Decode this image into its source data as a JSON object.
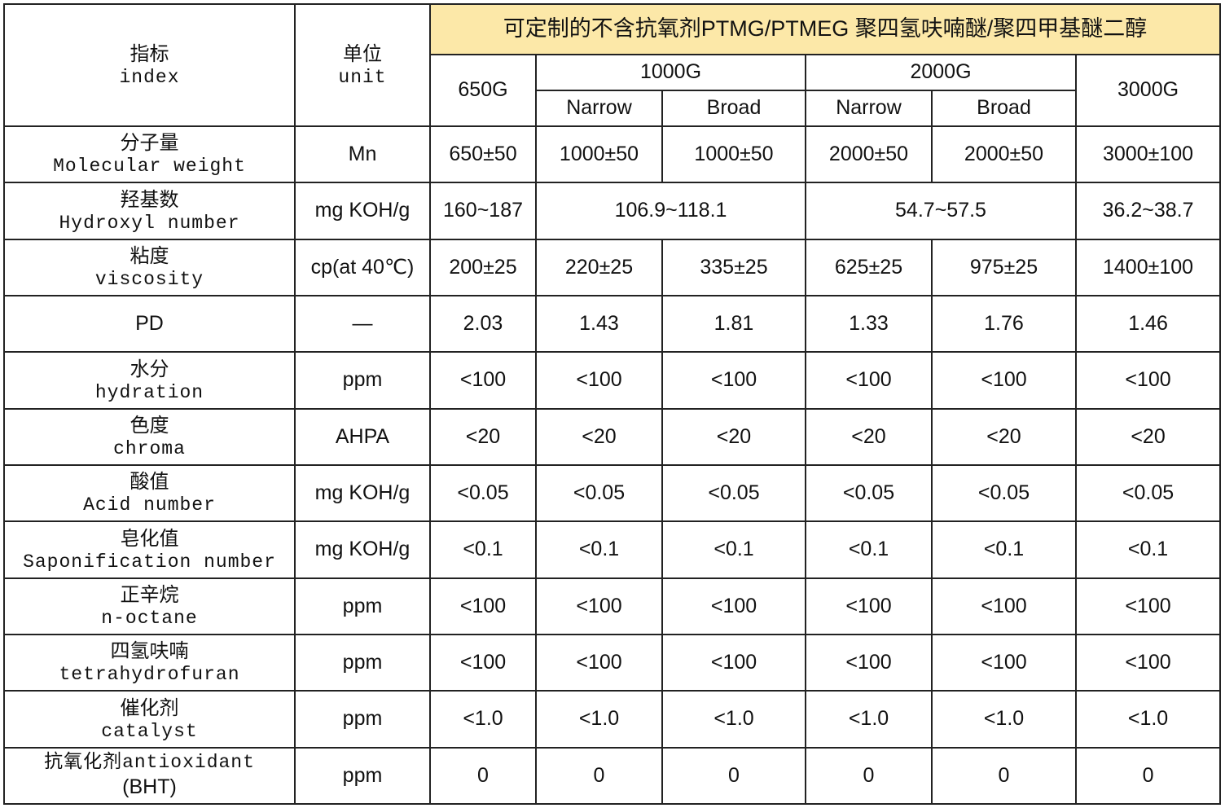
{
  "table": {
    "title": "可定制的不含抗氧剂PTMG/PTMEG 聚四氢呋喃醚/聚四甲基醚二醇",
    "header": {
      "index": [
        "指标",
        "index"
      ],
      "unit": [
        "单位",
        "unit"
      ],
      "grades": [
        "650G",
        "1000G",
        "2000G",
        "3000G"
      ],
      "subheaders": [
        "Narrow",
        "Broad",
        "Narrow",
        "Broad"
      ]
    },
    "rows": [
      {
        "label": [
          "分子量",
          "Molecular weight"
        ],
        "unit": "Mn",
        "values": [
          "650±50",
          "1000±50",
          "1000±50",
          "2000±50",
          "2000±50",
          "3000±100"
        ]
      },
      {
        "label": [
          "羟基数",
          "Hydroxyl number"
        ],
        "unit": "mg KOH/g",
        "values": [
          "160~187",
          "106.9~118.1",
          "54.7~57.5",
          "36.2~38.7"
        ]
      },
      {
        "label": [
          "粘度",
          "viscosity"
        ],
        "unit": "cp(at 40℃)",
        "values": [
          "200±25",
          "220±25",
          "335±25",
          "625±25",
          "975±25",
          "1400±100"
        ]
      },
      {
        "label": [
          "PD"
        ],
        "unit": "—",
        "values": [
          "2.03",
          "1.43",
          "1.81",
          "1.33",
          "1.76",
          "1.46"
        ]
      },
      {
        "label": [
          "水分",
          "hydration"
        ],
        "unit": "ppm",
        "values": [
          "<100",
          "<100",
          "<100",
          "<100",
          "<100",
          "<100"
        ]
      },
      {
        "label": [
          "色度",
          "chroma"
        ],
        "unit": "AHPA",
        "values": [
          "<20",
          "<20",
          "<20",
          "<20",
          "<20",
          "<20"
        ]
      },
      {
        "label": [
          "酸值",
          "Acid number"
        ],
        "unit": "mg KOH/g",
        "values": [
          "<0.05",
          "<0.05",
          "<0.05",
          "<0.05",
          "<0.05",
          "<0.05"
        ]
      },
      {
        "label": [
          "皂化值",
          "Saponification number"
        ],
        "unit": "mg KOH/g",
        "values": [
          "<0.1",
          "<0.1",
          "<0.1",
          "<0.1",
          "<0.1",
          "<0.1"
        ]
      },
      {
        "label": [
          "正辛烷",
          "n-octane"
        ],
        "unit": "ppm",
        "values": [
          "<100",
          "<100",
          "<100",
          "<100",
          "<100",
          "<100"
        ]
      },
      {
        "label": [
          "四氢呋喃",
          "tetrahydrofuran"
        ],
        "unit": "ppm",
        "values": [
          "<100",
          "<100",
          "<100",
          "<100",
          "<100",
          "<100"
        ]
      },
      {
        "label": [
          "催化剂",
          "catalyst"
        ],
        "unit": "ppm",
        "values": [
          "<1.0",
          "<1.0",
          "<1.0",
          "<1.0",
          "<1.0",
          "<1.0"
        ]
      },
      {
        "label": [
          "抗氧化剂antioxidant",
          "(BHT)"
        ],
        "unit": "ppm",
        "values": [
          "0",
          "0",
          "0",
          "0",
          "0",
          "0"
        ]
      }
    ]
  }
}
